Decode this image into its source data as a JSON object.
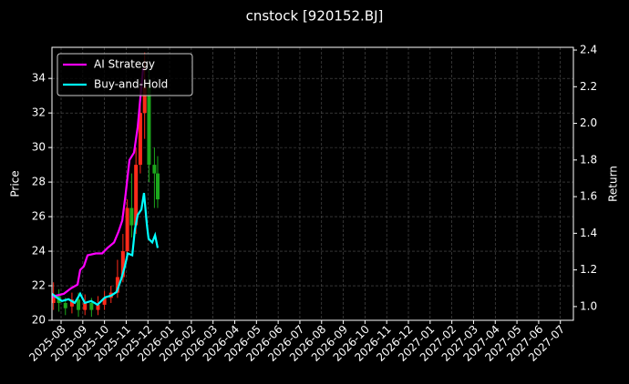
{
  "chart_data": {
    "type": "candlestick-line",
    "title": "cnstock [920152.BJ]",
    "ylabel": "Price",
    "y2label": "Return",
    "xlim": [
      -0.42,
      23.6
    ],
    "xticks": [
      {
        "value": 0,
        "label": "2025-08"
      },
      {
        "value": 1,
        "label": "2025-09"
      },
      {
        "value": 2,
        "label": "2025-10"
      },
      {
        "value": 3,
        "label": "2025-11"
      },
      {
        "value": 4,
        "label": "2025-12"
      },
      {
        "value": 5,
        "label": "2026-01"
      },
      {
        "value": 6,
        "label": "2026-02"
      },
      {
        "value": 7,
        "label": "2026-03"
      },
      {
        "value": 8,
        "label": "2026-04"
      },
      {
        "value": 9,
        "label": "2026-05"
      },
      {
        "value": 10,
        "label": "2026-06"
      },
      {
        "value": 11,
        "label": "2026-07"
      },
      {
        "value": 12,
        "label": "2026-08"
      },
      {
        "value": 13,
        "label": "2026-09"
      },
      {
        "value": 14,
        "label": "2026-10"
      },
      {
        "value": 15,
        "label": "2026-11"
      },
      {
        "value": 16,
        "label": "2026-12"
      },
      {
        "value": 17,
        "label": "2027-01"
      },
      {
        "value": 18,
        "label": "2027-02"
      },
      {
        "value": 19,
        "label": "2027-03"
      },
      {
        "value": 20,
        "label": "2027-04"
      },
      {
        "value": 21,
        "label": "2027-05"
      },
      {
        "value": 22,
        "label": "2027-06"
      },
      {
        "value": 23,
        "label": "2027-07"
      }
    ],
    "ylim": [
      20,
      35.8
    ],
    "yticks": [
      20,
      22,
      24,
      26,
      28,
      30,
      32,
      34
    ],
    "y2lim": [
      0.925,
      2.415
    ],
    "y2ticks": [
      {
        "value": 1,
        "label": "1.0"
      },
      {
        "value": 1.2,
        "label": "1.2"
      },
      {
        "value": 1.4,
        "label": "1.4"
      },
      {
        "value": 1.6,
        "label": "1.6"
      },
      {
        "value": 1.8,
        "label": "1.8"
      },
      {
        "value": 2,
        "label": "2.0"
      },
      {
        "value": 2.2,
        "label": "2.2"
      },
      {
        "value": 2.4,
        "label": "2.4"
      }
    ],
    "grid": true,
    "legend": "upper left",
    "up_color": "#ff2a1a",
    "down_color": "#1ca81c",
    "candles": {
      "x": [
        -0.35,
        -0.1,
        0.2,
        0.5,
        0.8,
        1.1,
        1.4,
        1.7,
        2.0,
        2.3,
        2.6,
        2.85,
        3.05,
        3.25,
        3.45,
        3.65,
        3.85,
        4.05,
        4.3,
        4.45
      ],
      "open": [
        21,
        21.4,
        21,
        20.8,
        21.2,
        20.6,
        21,
        20.6,
        20.9,
        21.3,
        21.6,
        22.5,
        24,
        26.5,
        25.5,
        29,
        32,
        33.5,
        29,
        28.5
      ],
      "close": [
        21.5,
        21,
        20.7,
        21.2,
        20.6,
        21,
        20.6,
        20.9,
        21.3,
        21.6,
        22.5,
        24,
        26.5,
        25.5,
        29,
        32,
        33.5,
        29,
        28.5,
        27
      ],
      "low": [
        20.6,
        20.5,
        20.3,
        20.4,
        20.2,
        20.3,
        20.2,
        20.3,
        20.6,
        21,
        21.3,
        22.2,
        23.5,
        24.8,
        25,
        28.5,
        30.5,
        28,
        26.5,
        26.5
      ],
      "high": [
        22.2,
        21.8,
        21.3,
        21.6,
        21.6,
        21.5,
        21.3,
        21.4,
        21.7,
        22,
        23.5,
        25,
        27,
        28.5,
        30,
        33.5,
        35.5,
        34.5,
        30,
        29.5
      ]
    },
    "series": [
      {
        "name": "AI Strategy",
        "color": "#ff00ff",
        "axis": "y2",
        "x": [
          -0.42,
          -0.21,
          0.13,
          0.46,
          0.76,
          0.88,
          1.05,
          1.22,
          1.6,
          1.89,
          2.14,
          2.44,
          2.65,
          2.82,
          2.98,
          3.15,
          3.36,
          3.53,
          3.66,
          3.78
        ],
        "values": [
          1.05,
          1.06,
          1.07,
          1.1,
          1.12,
          1.2,
          1.22,
          1.28,
          1.29,
          1.29,
          1.32,
          1.35,
          1.41,
          1.47,
          1.62,
          1.8,
          1.84,
          1.98,
          2.15,
          2.3
        ]
      },
      {
        "name": "Buy-and-Hold",
        "color": "#00ffff",
        "axis": "y2",
        "x": [
          -0.42,
          -0.21,
          0.04,
          0.34,
          0.63,
          0.88,
          1.09,
          1.39,
          1.68,
          2.02,
          2.31,
          2.56,
          2.77,
          2.94,
          3.07,
          3.28,
          3.4,
          3.53,
          3.7,
          3.82,
          3.95,
          4.03,
          4.2,
          4.33,
          4.45
        ],
        "values": [
          1.07,
          1.05,
          1.03,
          1.04,
          1.02,
          1.07,
          1.02,
          1.03,
          1.01,
          1.05,
          1.06,
          1.08,
          1.15,
          1.22,
          1.29,
          1.28,
          1.42,
          1.5,
          1.53,
          1.62,
          1.45,
          1.37,
          1.35,
          1.39,
          1.32
        ]
      }
    ]
  }
}
